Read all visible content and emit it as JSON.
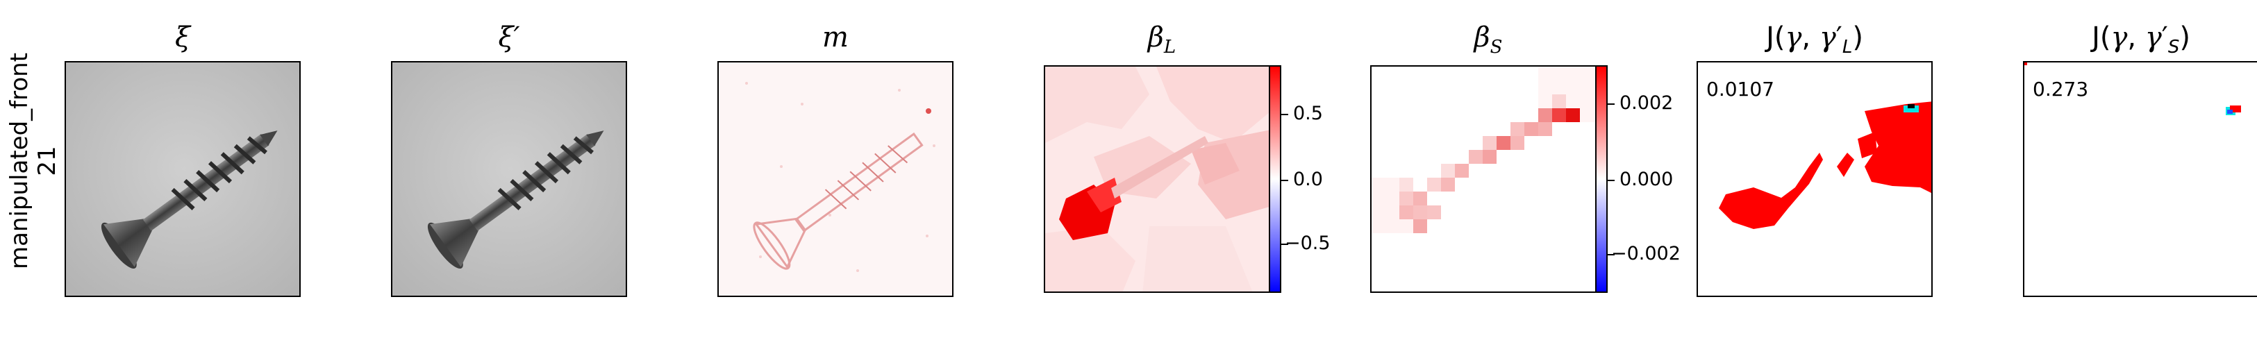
{
  "row_label": {
    "line1": "manipulated_front",
    "line2": "21"
  },
  "panels": {
    "xi": {
      "title": "ξ"
    },
    "xi_prime": {
      "title": "ξ′"
    },
    "m": {
      "title": "m"
    },
    "beta_l": {
      "title": "β_L",
      "ticks": [
        "0.5",
        "0.0",
        "−0.5"
      ],
      "range": [
        -0.9,
        0.9
      ]
    },
    "beta_s": {
      "title": "β_S",
      "ticks": [
        "0.002",
        "0.000",
        "−0.002"
      ],
      "range": [
        -0.003,
        0.003
      ]
    },
    "j_l": {
      "title": "J(γ, γ′_L)",
      "score": "0.0107"
    },
    "j_s": {
      "title": "J(γ, γ′_S)",
      "score": "0.273"
    }
  },
  "colors": {
    "positive": "#ff0000",
    "negative": "#0000ff",
    "zero": "#ffffff",
    "gray_bg": "#c8c8c8"
  }
}
